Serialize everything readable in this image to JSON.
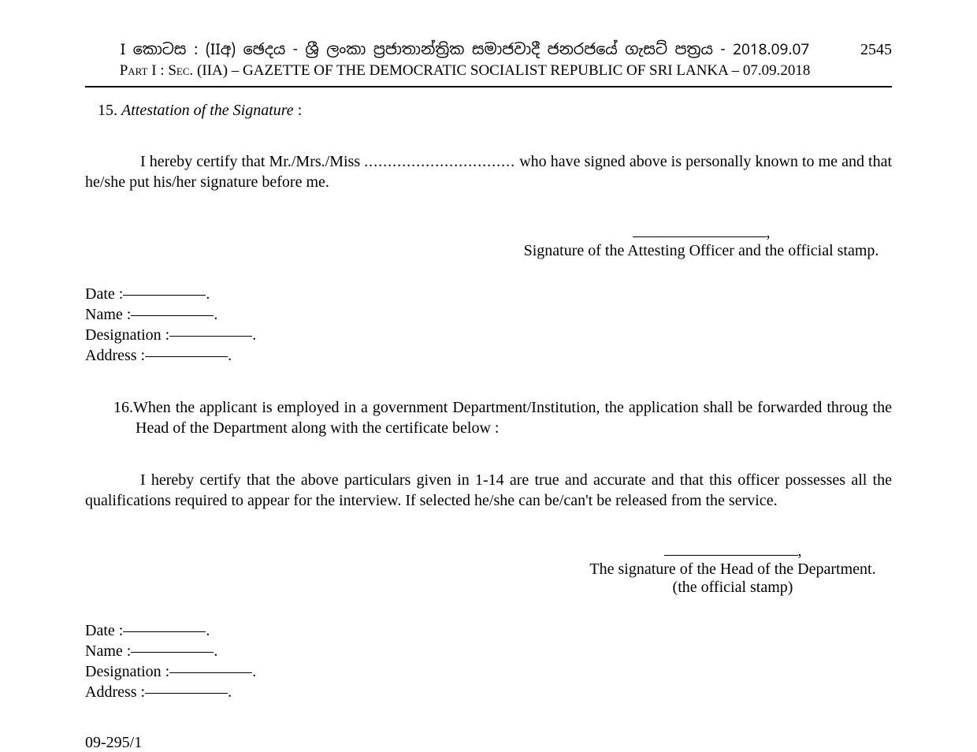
{
  "page_number": "2545",
  "header": {
    "line1": "I කොටස : (IIඅ) ඡෙදය - ශ්‍රී ලංකා ප්‍රජාතාන්ත්‍රික සමාජවාදී ජනරජයේ ගැසට් පත්‍රය - 2018.09.07",
    "line2": "Part I : Sec. (IIA) – GAZETTE OF THE DEMOCRATIC SOCIALIST REPUBLIC OF SRI LANKA – 07.09.2018"
  },
  "section15": {
    "number": "15.",
    "title": "Attestation of the Signature",
    "colon": " :",
    "body_pre": "I hereby certify that Mr./Mrs./Miss ",
    "dots": "................................",
    "body_post": " who have signed above is personally known to me and that he/she put his/her signature before me.",
    "sig_caption": "Signature of the Attesting Officer and the official stamp.",
    "comma": ","
  },
  "fields": {
    "date": "Date :",
    "name": "Name :",
    "designation": "Designation :",
    "address": "Address :",
    "period": "."
  },
  "section16": {
    "number": "16.",
    "head": "When the applicant is employed in a government Department/Institution, the application shall be forwarded throug the Head of the Department along with the certificate below :",
    "body": "I hereby certify that the above particulars given in 1-14 are true and accurate and that this officer possesses all the qualifications required to appear for the interview. If selected he/she can be/can't be released from the service.",
    "sig_line1": "The signature of the Head of the Department.",
    "sig_line2": "(the official stamp)",
    "comma": ","
  },
  "reference": "09-295/1"
}
